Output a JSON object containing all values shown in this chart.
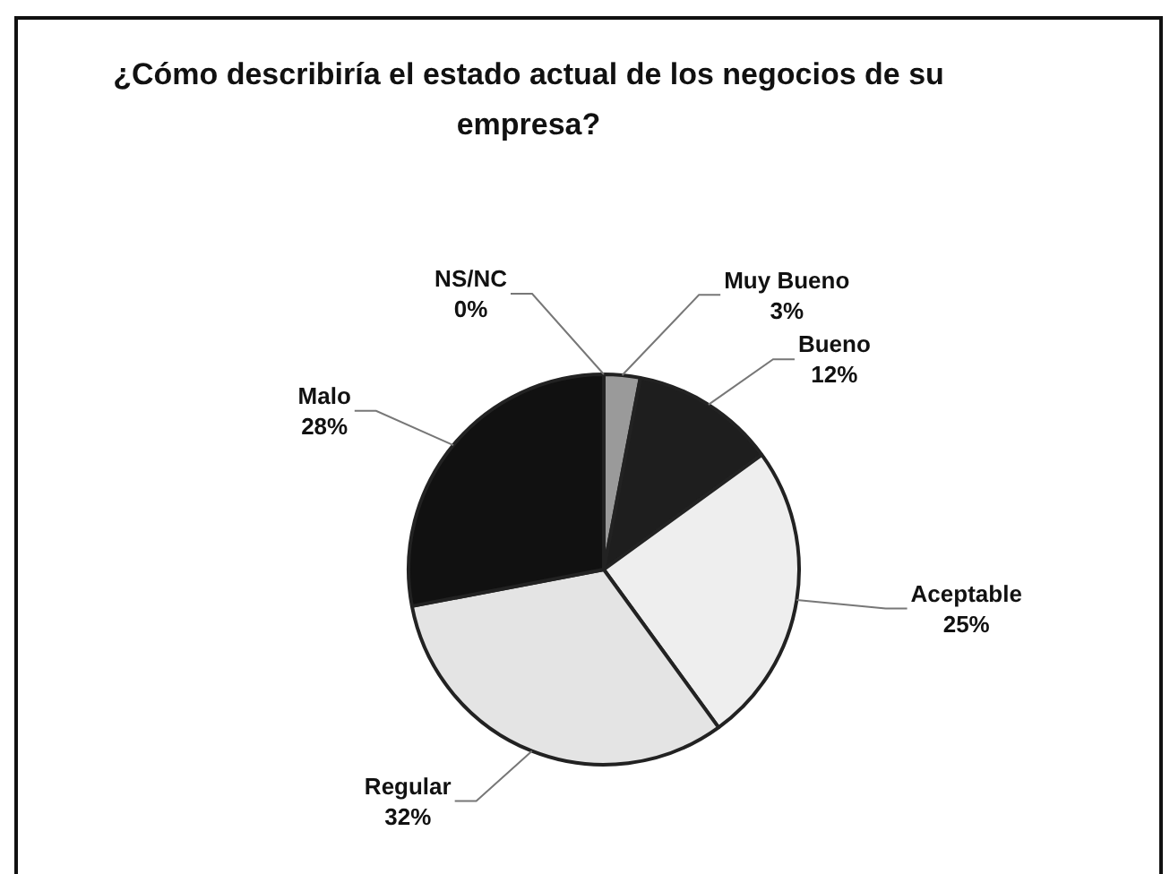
{
  "chart_data": {
    "type": "pie",
    "title": "¿Cómo describiría el estado actual de los negocios de su empresa?",
    "categories": [
      "NS/NC",
      "Muy Bueno",
      "Bueno",
      "Aceptable",
      "Regular",
      "Malo"
    ],
    "values": [
      0,
      3,
      12,
      25,
      32,
      28
    ],
    "value_labels": [
      "0%",
      "3%",
      "12%",
      "25%",
      "32%",
      "28%"
    ],
    "colors": [
      "#ffffff",
      "#9a9a9a",
      "#1e1e1e",
      "#eeeeee",
      "#e4e4e4",
      "#111111"
    ],
    "legend": false
  }
}
